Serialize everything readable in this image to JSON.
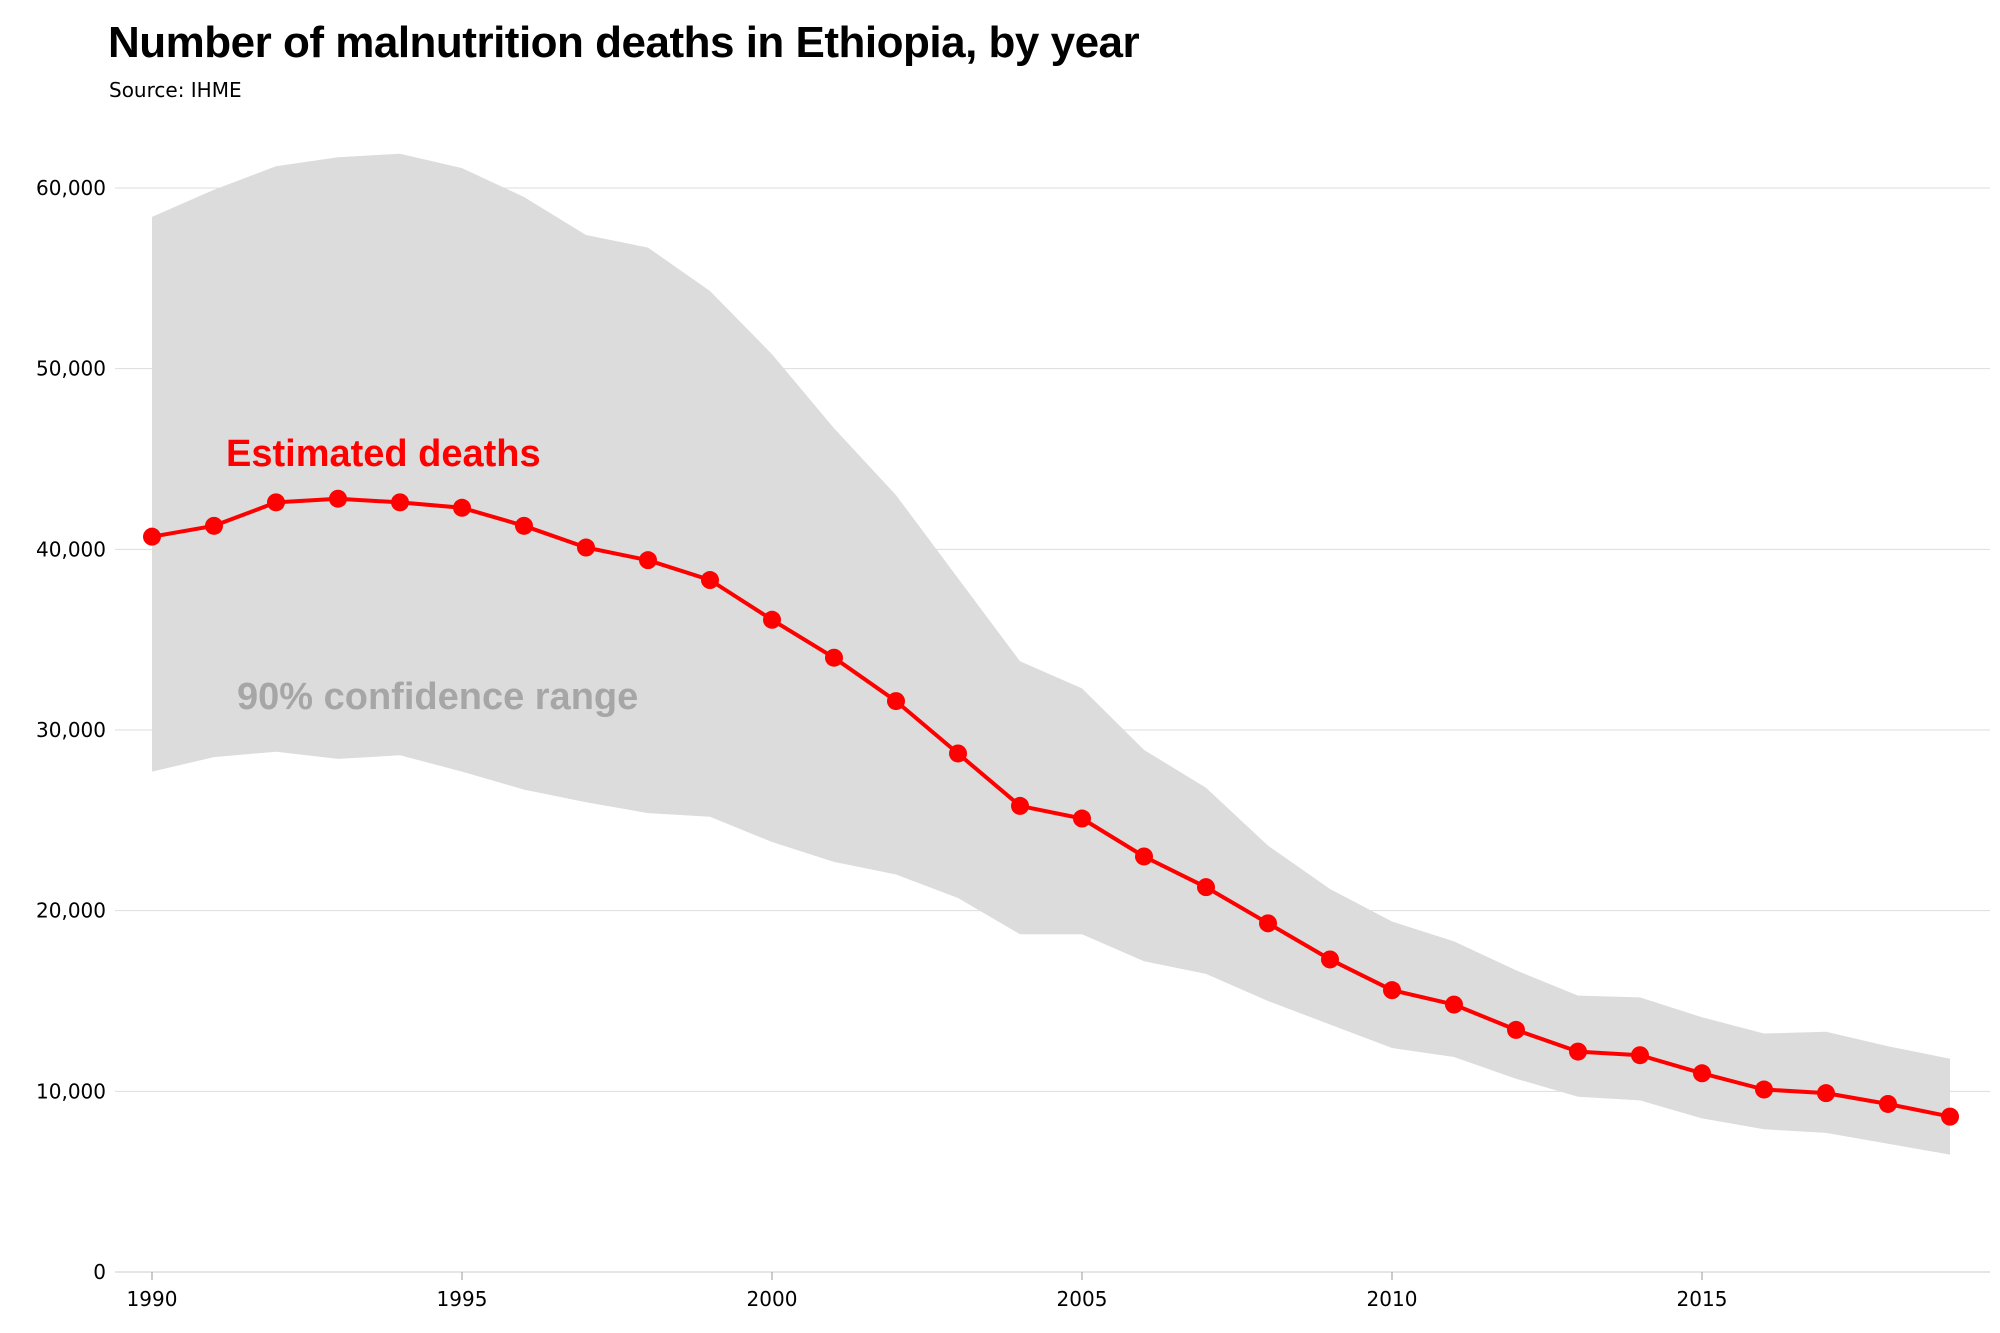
{
  "colors": {
    "line": "#ff0000",
    "band": "#dcdcdc",
    "grid": "#dddddd",
    "band_label": "#a6a6a6",
    "text": "#000000"
  },
  "chart_data": {
    "type": "line",
    "title": "Number of malnutrition deaths in Ethiopia, by year",
    "subtitle": "Source: IHME",
    "xlabel": "",
    "ylabel": "",
    "xlim": [
      1990,
      2019
    ],
    "ylim": [
      0,
      60000
    ],
    "grid": true,
    "x": [
      1990,
      1991,
      1992,
      1993,
      1994,
      1995,
      1996,
      1997,
      1998,
      1999,
      2000,
      2001,
      2002,
      2003,
      2004,
      2005,
      2006,
      2007,
      2008,
      2009,
      2010,
      2011,
      2012,
      2013,
      2014,
      2015,
      2016,
      2017,
      2018,
      2019
    ],
    "x_ticks": [
      "1990",
      "1995",
      "2000",
      "2005",
      "2010",
      "2015"
    ],
    "x_tick_values": [
      1990,
      1995,
      2000,
      2005,
      2010,
      2015
    ],
    "y_ticks": [
      "0",
      "10,000",
      "20,000",
      "30,000",
      "40,000",
      "50,000",
      "60,000"
    ],
    "y_tick_values": [
      0,
      10000,
      20000,
      30000,
      40000,
      50000,
      60000
    ],
    "series": [
      {
        "name": "Estimated deaths",
        "values": [
          40700,
          41300,
          42600,
          42800,
          42600,
          42300,
          41300,
          40100,
          39400,
          38300,
          36100,
          34000,
          31600,
          28700,
          25800,
          25100,
          23000,
          21300,
          19300,
          17300,
          15600,
          14800,
          13400,
          12200,
          12000,
          11000,
          10100,
          9900,
          9300,
          8600
        ]
      }
    ],
    "band": {
      "name": "90% confidence range",
      "upper": [
        58400,
        59900,
        61200,
        61700,
        61900,
        61100,
        59500,
        57400,
        56700,
        54300,
        50800,
        46700,
        43000,
        38400,
        33800,
        32300,
        28900,
        26800,
        23600,
        21200,
        19400,
        18300,
        16700,
        15300,
        15200,
        14100,
        13200,
        13300,
        12500,
        11800
      ],
      "lower": [
        27700,
        28500,
        28800,
        28400,
        28600,
        27700,
        26700,
        26000,
        25400,
        25200,
        23800,
        22700,
        22000,
        20700,
        18700,
        18700,
        17200,
        16500,
        15000,
        13700,
        12400,
        11900,
        10700,
        9700,
        9500,
        8500,
        7900,
        7700,
        7100,
        6500
      ]
    },
    "annotations": [
      "Estimated deaths",
      "90% confidence range"
    ]
  }
}
